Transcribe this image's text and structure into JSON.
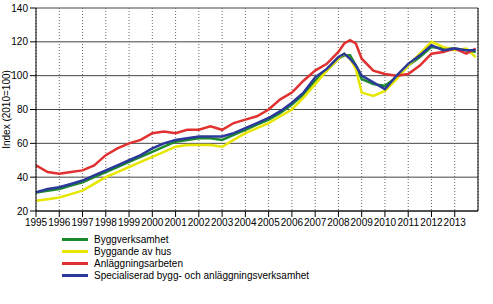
{
  "chart_data": {
    "type": "line",
    "y_label": "Index (2010=100)",
    "x": [
      1995,
      1995.5,
      1996,
      1996.5,
      1997,
      1997.5,
      1998,
      1998.5,
      1999,
      1999.5,
      2000,
      2000.5,
      2001,
      2001.5,
      2002,
      2002.5,
      2003,
      2003.5,
      2004,
      2004.5,
      2005,
      2005.5,
      2006,
      2006.5,
      2007,
      2007.5,
      2008,
      2008.25,
      2008.5,
      2008.75,
      2009,
      2009.5,
      2010,
      2010.5,
      2011,
      2011.5,
      2012,
      2012.5,
      2013,
      2013.5,
      2013.9
    ],
    "series": [
      {
        "name": "Byggverksamhet",
        "color": "#1a8a2a",
        "values": [
          31,
          32,
          33,
          35,
          37,
          40,
          43,
          46,
          49,
          52,
          55,
          58,
          61,
          62,
          63,
          63,
          62,
          65,
          68,
          71,
          74,
          78,
          83,
          89,
          97,
          103,
          110,
          112,
          112,
          106,
          98,
          95,
          94,
          99,
          106,
          111,
          117,
          116,
          116,
          115,
          114
        ]
      },
      {
        "name": "Byggande av hus",
        "color": "#e6e600",
        "values": [
          26,
          27,
          28,
          30,
          32,
          36,
          40,
          43,
          46,
          49,
          52,
          55,
          58,
          59,
          59,
          59,
          58,
          62,
          66,
          69,
          72,
          76,
          80,
          87,
          95,
          103,
          110,
          113,
          110,
          104,
          90,
          88,
          91,
          98,
          106,
          113,
          120,
          117,
          115,
          116,
          111
        ]
      },
      {
        "name": "Anläggningsarbeten",
        "color": "#e03030",
        "values": [
          47,
          43,
          42,
          43,
          44,
          47,
          53,
          57,
          60,
          62,
          66,
          67,
          66,
          68,
          68,
          70,
          68,
          72,
          74,
          76,
          80,
          86,
          90,
          97,
          103,
          107,
          114,
          119,
          121,
          119,
          110,
          103,
          101,
          100,
          101,
          106,
          113,
          114,
          116,
          113,
          116
        ]
      },
      {
        "name": "Specialiserad bygg- och anläggningsverksamhet",
        "color": "#2b3a9a",
        "values": [
          31,
          33,
          34,
          36,
          38,
          41,
          44,
          47,
          50,
          53,
          57,
          60,
          62,
          63,
          64,
          64,
          64,
          66,
          69,
          72,
          75,
          79,
          84,
          90,
          99,
          104,
          111,
          113,
          110,
          106,
          100,
          96,
          92,
          100,
          107,
          112,
          118,
          115,
          116,
          115,
          115
        ]
      }
    ],
    "xlim": [
      1995,
      2014
    ],
    "xticks": [
      1995,
      1996,
      1997,
      1998,
      1999,
      2000,
      2001,
      2002,
      2003,
      2004,
      2005,
      2006,
      2007,
      2008,
      2009,
      2010,
      2011,
      2012,
      2013
    ],
    "ylim": [
      20,
      140
    ],
    "yticks": [
      20,
      40,
      60,
      80,
      100,
      120,
      140
    ],
    "grid": true,
    "legend": "bottom"
  }
}
